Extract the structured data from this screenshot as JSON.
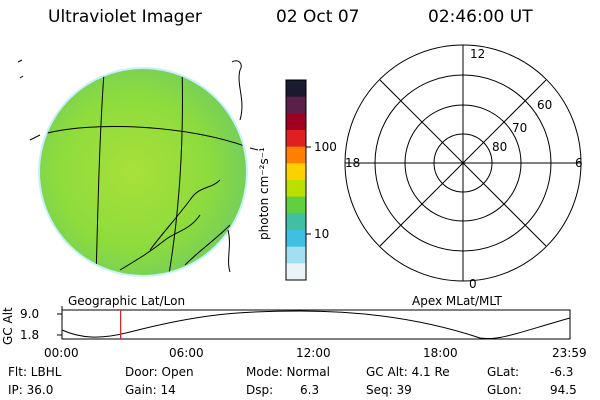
{
  "header": {
    "title": "Ultraviolet Imager",
    "date": "02 Oct 07",
    "time": "02:46:00 UT"
  },
  "colorbar": {
    "unit_label": "photon cm⁻²s⁻¹",
    "ticks": [
      "100",
      "10"
    ],
    "colors": [
      "#1a1a2e",
      "#5a1f4a",
      "#a00020",
      "#e02020",
      "#ff8000",
      "#ffd000",
      "#b8e000",
      "#60d040",
      "#40c0a0",
      "#40c0e0",
      "#a0e0f0",
      "#e8f4f8"
    ]
  },
  "left_panel": {
    "label": "Geographic Lat/Lon",
    "disk_color": "#8edc3c"
  },
  "right_panel": {
    "label": "Apex MLat/MLT",
    "lat_labels": [
      "60",
      "70",
      "80"
    ],
    "mlt_labels": [
      "12",
      "18",
      "6",
      "0"
    ]
  },
  "altitude_plot": {
    "ylabel": "GC Alt",
    "y_ticks": [
      "9.0",
      "1.8"
    ],
    "x_ticks": [
      "00:00",
      "06:00",
      "12:00",
      "18:00",
      "23:59"
    ],
    "current_time_marker_hours": 2.77,
    "marker_color": "#d02020"
  },
  "info": {
    "flt": "Flt: LBHL",
    "ip": "IP: 36.0",
    "door": "Door: Open",
    "gain": "Gain: 14",
    "mode": "Mode: Normal",
    "dsp_label": "Dsp:",
    "dsp_value": "6.3",
    "gc_alt": "GC Alt: 4.1 Re",
    "seq": "Seq: 39",
    "glat_label": "GLat:",
    "glat_value": "-6.3",
    "glon_label": "GLon:",
    "glon_value": "94.5"
  }
}
